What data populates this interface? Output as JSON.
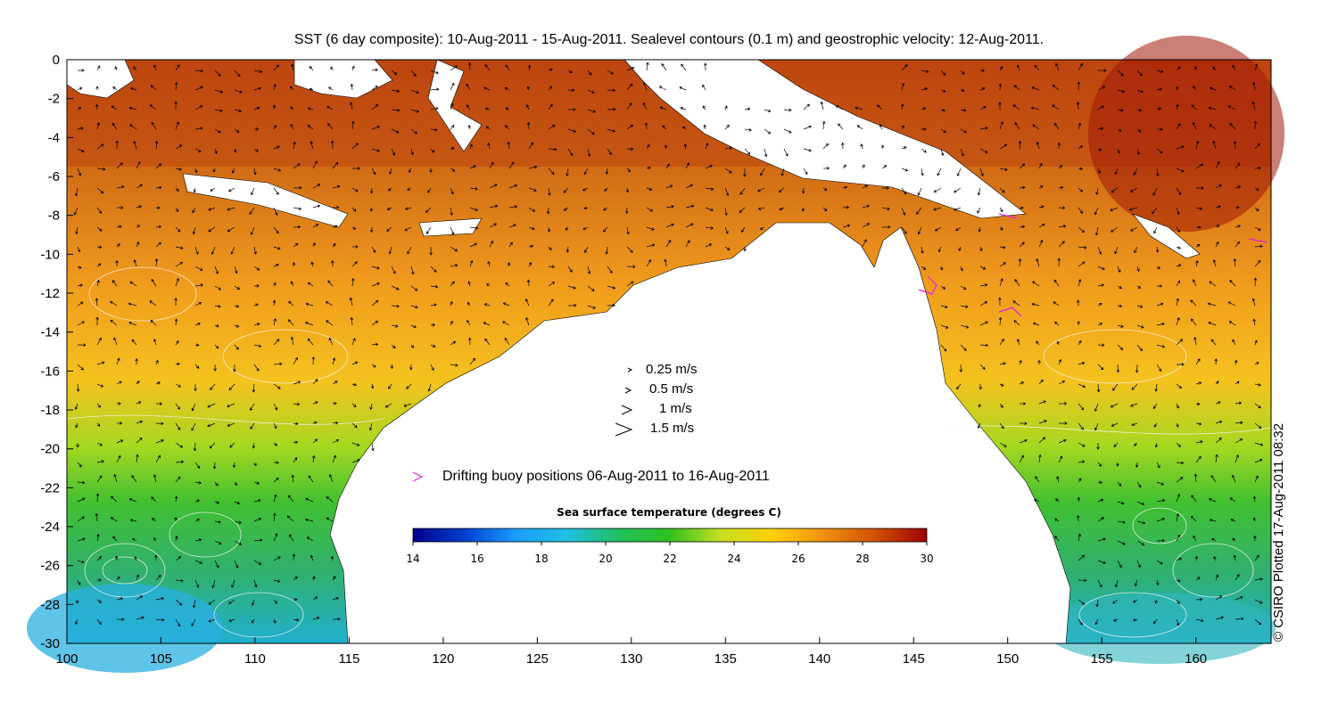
{
  "title": "SST (6 day composite): 10-Aug-2011 - 15-Aug-2011. Sealevel contours (0.1 m) and geostrophic velocity: 12-Aug-2011.",
  "credit": "© CSIRO Plotted 17-Aug-2011 08:32",
  "axes": {
    "x_ticks": [
      "100",
      "105",
      "110",
      "115",
      "120",
      "125",
      "130",
      "135",
      "140",
      "145",
      "150",
      "155",
      "160"
    ],
    "y_ticks": [
      "0",
      "-2",
      "-4",
      "-6",
      "-8",
      "-10",
      "-12",
      "-14",
      "-16",
      "-18",
      "-20",
      "-22",
      "-24",
      "-26",
      "-28",
      "-30"
    ],
    "xlim": [
      100,
      164
    ],
    "ylim": [
      -30,
      0
    ]
  },
  "velocity_legend": [
    {
      "label": "0.25 m/s",
      "speed": 0.25
    },
    {
      "label": "0.5 m/s",
      "speed": 0.5
    },
    {
      "label": "1 m/s",
      "speed": 1
    },
    {
      "label": "1.5 m/s",
      "speed": 1.5
    }
  ],
  "buoy_legend": {
    "label": "Drifting buoy positions 06-Aug-2011 to 16-Aug-2011",
    "color": "#e020e0"
  },
  "colorbar": {
    "title": "Sea surface temperature (degrees C)",
    "ticks": [
      "14",
      "16",
      "18",
      "20",
      "22",
      "24",
      "26",
      "28",
      "30"
    ],
    "range": [
      14,
      30
    ],
    "colors": [
      "#00008b",
      "#0040d0",
      "#1a9cff",
      "#20c0e0",
      "#20c060",
      "#30c020",
      "#c8e020",
      "#ffd000",
      "#f09010",
      "#d05000",
      "#a00000"
    ]
  },
  "colors": {
    "land": "#ffffff",
    "contour": "#f0f0f0",
    "arrow": "#000000"
  }
}
